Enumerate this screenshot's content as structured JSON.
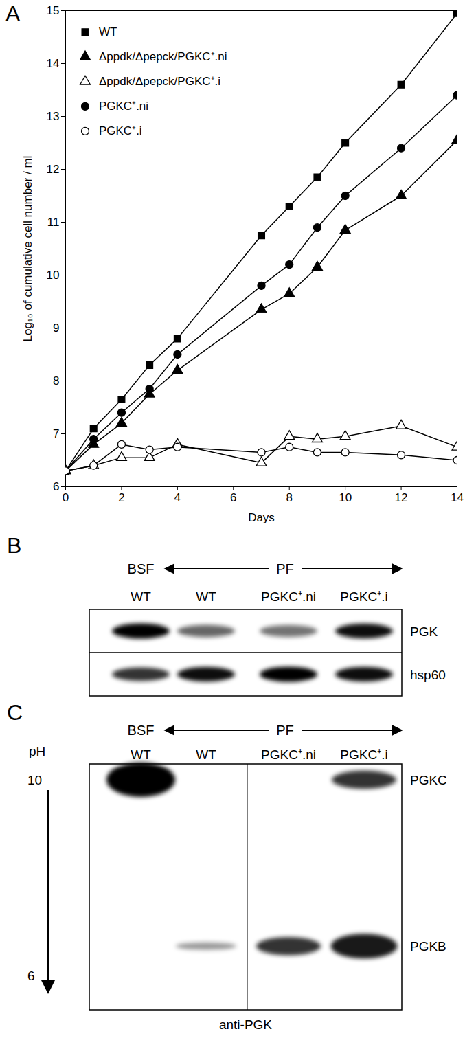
{
  "chart_data": {
    "type": "line",
    "title": "A",
    "x_label": "Days",
    "y_label": "Log₁₀ of cumulative cell number / ml",
    "x": [
      0,
      1,
      2,
      3,
      4,
      7,
      8,
      9,
      10,
      12,
      14
    ],
    "series": [
      {
        "name": "WT",
        "color": "#000000",
        "marker": "square",
        "values": [
          6.3,
          7.1,
          7.65,
          8.3,
          8.8,
          10.75,
          11.3,
          11.85,
          12.5,
          13.6,
          14.95
        ]
      },
      {
        "name": "Δppdk/Δpepck/PGKC⁺.ni",
        "color": "#000000",
        "marker": "triangle",
        "values": [
          6.3,
          6.8,
          7.2,
          7.75,
          8.2,
          9.35,
          9.65,
          10.15,
          10.85,
          11.5,
          12.55
        ]
      },
      {
        "name": "Δppdk/Δpepck/PGKC⁺.i",
        "color": "#000000",
        "marker": "triangle-open",
        "values": [
          6.3,
          6.4,
          6.55,
          6.55,
          6.8,
          6.45,
          6.95,
          6.9,
          6.95,
          7.15,
          6.75
        ]
      },
      {
        "name": "PGKC⁺.ni",
        "color": "#000000",
        "marker": "circle",
        "values": [
          6.3,
          6.9,
          7.4,
          7.85,
          8.5,
          9.8,
          10.2,
          10.9,
          11.5,
          12.4,
          13.4
        ]
      },
      {
        "name": "PGKC⁺.i",
        "color": "#000000",
        "marker": "circle-open",
        "values": [
          6.3,
          6.4,
          6.8,
          6.7,
          6.75,
          6.65,
          6.75,
          6.65,
          6.65,
          6.6,
          6.5
        ]
      }
    ],
    "xlim": [
      0,
      14
    ],
    "xticks": [
      0,
      2,
      4,
      6,
      8,
      10,
      12,
      14
    ],
    "ylim": [
      6,
      15
    ],
    "yticks": [
      6,
      7,
      8,
      9,
      10,
      11,
      12,
      13,
      14,
      15
    ],
    "grid": false,
    "legend": "top-left"
  },
  "blots": [
    {
      "panel": "B",
      "groups": [
        {
          "label": "BSF",
          "lanes": [
            0
          ]
        },
        {
          "label": "PF",
          "lanes": [
            1,
            2,
            3
          ]
        }
      ],
      "lanes": [
        "WT",
        "WT",
        "PGKC⁺.ni",
        "PGKC⁺.i"
      ],
      "rows": [
        {
          "label": "PGK",
          "intensities": [
            1.0,
            0.6,
            0.55,
            0.95
          ]
        },
        {
          "label": "hsp60",
          "intensities": [
            0.8,
            0.95,
            1.0,
            0.95
          ]
        }
      ]
    },
    {
      "panel": "C",
      "groups": [
        {
          "label": "BSF",
          "lanes": [
            0
          ]
        },
        {
          "label": "PF",
          "lanes": [
            1,
            2,
            3
          ]
        }
      ],
      "lanes": [
        "WT",
        "WT",
        "PGKC⁺.ni",
        "PGKC⁺.i"
      ],
      "ph_axis": {
        "label": "pH",
        "top": 10,
        "bottom": 6
      },
      "divider_after_lane": 1,
      "bands": [
        {
          "label": "PGKC",
          "ph": 10,
          "intensities": [
            1.0,
            0,
            0,
            0.8
          ]
        },
        {
          "label": "PGKB",
          "ph": 6.6,
          "intensities": [
            0,
            0.4,
            0.8,
            0.9
          ]
        }
      ],
      "caption": "anti-PGK"
    }
  ]
}
